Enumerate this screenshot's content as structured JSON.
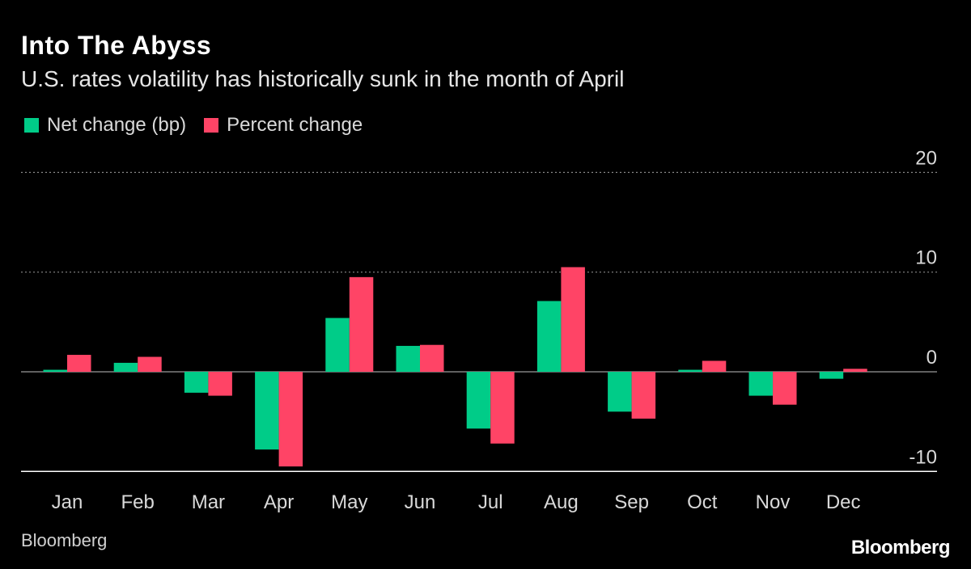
{
  "header": {
    "title": "Into The Abyss",
    "subtitle": "U.S. rates volatility has historically sunk in the month of April"
  },
  "footer": {
    "source": "Bloomberg",
    "logo": "Bloomberg"
  },
  "colors": {
    "net": "#00cc88",
    "percent": "#ff4466",
    "grid": "#888888",
    "axis": "#ffffff",
    "label": "#d9d9d9"
  },
  "chart_data": {
    "type": "bar",
    "title": "Into The Abyss",
    "subtitle": "U.S. rates volatility has historically sunk in the month of April",
    "categories": [
      "Jan",
      "Feb",
      "Mar",
      "Apr",
      "May",
      "Jun",
      "Jul",
      "Aug",
      "Sep",
      "Oct",
      "Nov",
      "Dec"
    ],
    "series": [
      {
        "name": "Net change (bp)",
        "values": [
          0.2,
          0.9,
          -2.1,
          -7.8,
          5.4,
          2.6,
          -5.7,
          7.1,
          -4.0,
          0.2,
          -2.4,
          -0.7
        ]
      },
      {
        "name": "Percent change",
        "values": [
          1.7,
          1.5,
          -2.4,
          -9.5,
          9.5,
          2.7,
          -7.2,
          10.5,
          -4.7,
          1.1,
          -3.3,
          0.3
        ]
      }
    ],
    "ylim": [
      -10,
      20
    ],
    "yticks": [
      20,
      10,
      0,
      -10
    ],
    "ytick_labels": [
      "20",
      "10",
      "0",
      "-10"
    ],
    "xlabel": "",
    "ylabel": "",
    "legend_position": "top-left",
    "grid": true
  }
}
